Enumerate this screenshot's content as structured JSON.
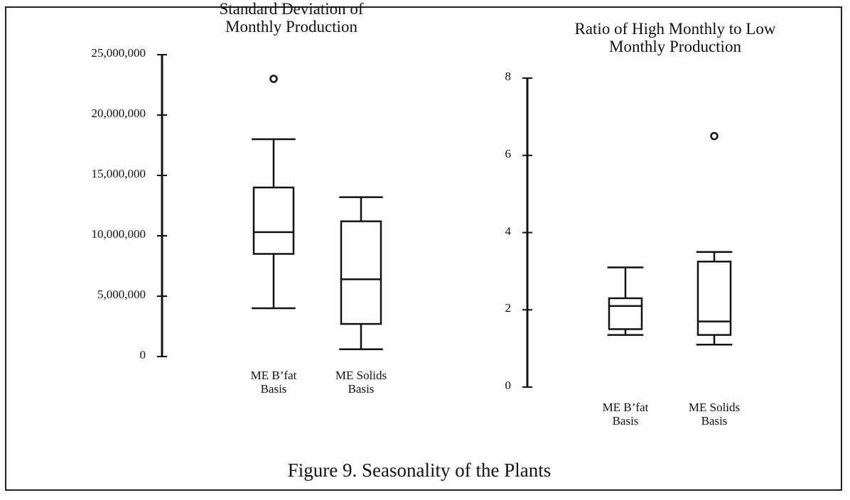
{
  "chart_data": [
    {
      "type": "box",
      "title": "Standard Deviation of Monthly Production",
      "categories": [
        "ME B’fat Basis",
        "ME Solids Basis"
      ],
      "boxes": [
        {
          "whisker_low": 4000000,
          "q1": 8500000,
          "median": 10300000,
          "q3": 14000000,
          "whisker_high": 18000000,
          "outliers": [
            23000000
          ]
        },
        {
          "whisker_low": 600000,
          "q1": 2700000,
          "median": 6400000,
          "q3": 11200000,
          "whisker_high": 13200000,
          "outliers": []
        }
      ],
      "ylim": [
        0,
        25000000
      ],
      "yticks": [
        {
          "value": 0,
          "label": "0"
        },
        {
          "value": 5000000,
          "label": "5,000,000"
        },
        {
          "value": 10000000,
          "label": "10,000,000"
        },
        {
          "value": 15000000,
          "label": "15,000,000"
        },
        {
          "value": 20000000,
          "label": "20,000,000"
        },
        {
          "value": 25000000,
          "label": "25,000,000"
        }
      ],
      "color": "#111111"
    },
    {
      "type": "box",
      "title": "Ratio of High Monthly to Low Monthly Production",
      "categories": [
        "ME B’fat Basis",
        "ME Solids Basis"
      ],
      "boxes": [
        {
          "whisker_low": 1.35,
          "q1": 1.5,
          "median": 2.1,
          "q3": 2.3,
          "whisker_high": 3.1,
          "outliers": []
        },
        {
          "whisker_low": 1.1,
          "q1": 1.35,
          "median": 1.7,
          "q3": 3.25,
          "whisker_high": 3.5,
          "outliers": [
            6.5
          ]
        }
      ],
      "ylim": [
        0,
        8
      ],
      "yticks": [
        0,
        2,
        4,
        6,
        8
      ],
      "color": "#111111"
    }
  ],
  "caption": "Figure 9.  Seasonality of the Plants"
}
